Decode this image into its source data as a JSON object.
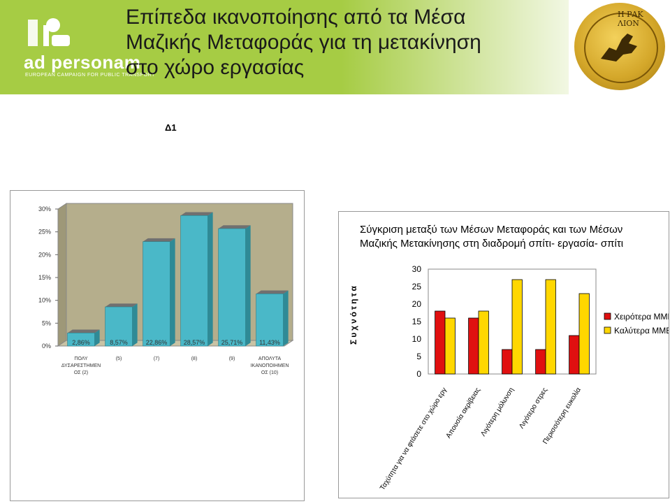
{
  "header": {
    "title_line_1": "Επίπεδα ικανοποίησης από τα Μέσα",
    "title_line_2": "Μαζικής Μεταφοράς για τη μετακίνηση",
    "title_line_3": "στο χώρο εργασίας",
    "logo_text": "ad personam",
    "logo_subtitle": "EUROPEAN CAMPAIGN FOR PUBLIC TRANSPORT",
    "coin_text": "Η ΡΑΚ ΛΙΟΝ",
    "banner_color": "#a6cc44"
  },
  "slide_label": "Δ1",
  "chart_data": [
    {
      "type": "bar",
      "categories": [
        "ΠΟΛΥ ΔΥΣΑΡΕΣΤΗΜΕΝΟΣ (2)",
        "(5)",
        "(7)",
        "(8)",
        "(9)",
        "ΑΠΟΛΥΤΑ ΙΚΑΝΟΠΟΙΗΜΕΝΟΣ (10)"
      ],
      "category_lines": [
        [
          "ΠΟΛΥ",
          "ΔΥΣΑΡΕΣΤΗΜΕΝ",
          "ΟΣ (2)"
        ],
        [
          "(5)"
        ],
        [
          "(7)"
        ],
        [
          "(8)"
        ],
        [
          "(9)"
        ],
        [
          "ΑΠΟΛΥΤΑ",
          "ΙΚΑΝΟΠΟΙΗΜΕΝ",
          "ΟΣ (10)"
        ]
      ],
      "values": [
        2.86,
        8.57,
        22.86,
        28.57,
        25.71,
        11.43
      ],
      "data_labels": [
        "2,86%",
        "8,57%",
        "22,86%",
        "28,57%",
        "25,71%",
        "11,43%"
      ],
      "yticks": [
        "0%",
        "5%",
        "10%",
        "15%",
        "20%",
        "25%",
        "30%"
      ],
      "ylim": [
        0,
        30
      ],
      "bar_color": "#4ab8c8",
      "wall_color": "#b5ae8c"
    },
    {
      "type": "bar",
      "title_line_1": "Σύγκριση μεταξύ των Μέσων Μεταφοράς και των Μέσων",
      "title_line_2": "Μαζικής Μετακίνησης στη διαδρομή σπίτι- εργασία- σπίτι",
      "ylabel": "Συχνότητα",
      "categories": [
        "Ταχύτητα για να φτάσετε στο χώρο εργ",
        "Απουσία ακρίβειας",
        "Λιγότερη μόλυνση",
        "Λιγότερο στρες",
        "Περισσότερη ευκολία"
      ],
      "series": [
        {
          "name": "Χειρότερα ΜΜΕ",
          "values": [
            18,
            16,
            7,
            7,
            11
          ],
          "color": "#e01010"
        },
        {
          "name": "Καλύτερα ΜΜΕ",
          "values": [
            16,
            18,
            27,
            27,
            23
          ],
          "color": "#ffd700"
        }
      ],
      "yticks": [
        "0",
        "5",
        "10",
        "15",
        "20",
        "25",
        "30"
      ],
      "ylim": [
        0,
        30
      ],
      "grid": false,
      "legend_position": "right"
    }
  ]
}
